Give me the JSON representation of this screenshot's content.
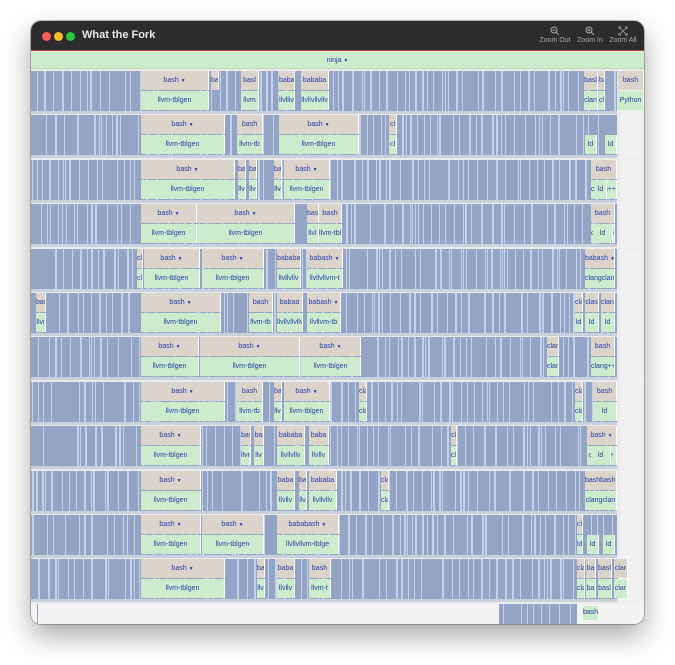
{
  "window": {
    "title": "What the Fork",
    "toolbar": [
      {
        "label": "Zoom Out",
        "icon": "zoom-out-icon"
      },
      {
        "label": "Zoom In",
        "icon": "zoom-in-icon"
      },
      {
        "label": "Zoom All",
        "icon": "zoom-all-icon"
      }
    ]
  },
  "root": {
    "label": "ninja"
  },
  "colors": {
    "fork": "#dcd3cb",
    "exec": "#cdeccd",
    "process": "#93a4c4",
    "stroke": "#c2d2ea",
    "text": "#2440a8"
  },
  "rows": [
    {
      "left": [
        [
          "bash",
          "llvm-tblgen"
        ],
        [
          "ba",
          ""
        ],
        [
          "basl",
          "llvm"
        ],
        [
          "baba",
          "llvlliv"
        ],
        [
          "bababa",
          "llvllvllvllv"
        ]
      ],
      "right": [
        [
          "basl",
          "clan"
        ],
        [
          "ba",
          "cla"
        ],
        [
          "bash",
          "Python"
        ]
      ]
    },
    {
      "left": [
        [
          "bash",
          "llvm-tblgen"
        ],
        [
          "bash",
          "llvm-tb"
        ],
        [
          "bash",
          "llvm-tblgen"
        ],
        [
          "cl",
          "cl"
        ]
      ],
      "right": [
        [
          "",
          "ld"
        ],
        [
          "",
          "ld"
        ]
      ]
    },
    {
      "left": [
        [
          "bash",
          "llvm-tblgen"
        ],
        [
          "ba",
          "llv"
        ],
        [
          "ba",
          "llv"
        ],
        [
          "ba",
          "llv"
        ],
        [
          "bash",
          "llvm-tblgen"
        ]
      ],
      "right": [
        [
          "bash",
          "clang++"
        ],
        [
          "",
          "ld"
        ]
      ]
    },
    {
      "left": [
        [
          "bash",
          "llvm-tblgen"
        ],
        [
          "bash",
          "llvm-tblgen"
        ],
        [
          "bas",
          "llvl"
        ],
        [
          "bash",
          "llvm-tblg"
        ]
      ],
      "right": [
        [
          "bash",
          "clang++"
        ],
        [
          "",
          "ld"
        ]
      ]
    },
    {
      "left": [
        [
          "cl",
          "cl"
        ],
        [
          "bash",
          "llvm-tblgen"
        ],
        [
          "bash",
          "llvm-tblgen"
        ],
        [
          "bababa",
          "llvllvllv"
        ],
        [
          "babash",
          "llvllvllvm-t"
        ]
      ],
      "right": [
        [
          "babash",
          "clangclang"
        ]
      ]
    },
    {
      "left": [
        [
          "bas",
          "llvi"
        ],
        [
          "bash",
          "llvm-tblgen"
        ],
        [
          "bash",
          "llvm-tb"
        ],
        [
          "babaa",
          "llvllvllvllv"
        ],
        [
          "babash",
          "llvllvm-tb"
        ]
      ],
      "right": [
        [
          "cla",
          "ld"
        ],
        [
          "clas",
          "ld"
        ],
        [
          "clang",
          "ld"
        ]
      ]
    },
    {
      "left": [
        [
          "bash",
          "llvm-tblgen"
        ],
        [
          "bash",
          "llvm-tblgen"
        ],
        [
          "bash",
          "llvm-tblgen"
        ]
      ],
      "right": [
        [
          "clan",
          "clan"
        ],
        [
          "bash",
          "clang++"
        ]
      ]
    },
    {
      "left": [
        [
          "bash",
          "llvm-tblgen"
        ],
        [
          "bash",
          "llvm-tb"
        ],
        [
          "ba",
          "llv"
        ],
        [
          "bash",
          "llvm-tblgen"
        ],
        [
          "cla",
          "cla"
        ]
      ],
      "right": [
        [
          "cla",
          "cla"
        ],
        [
          "bash",
          "ld"
        ]
      ]
    },
    {
      "left": [
        [
          "bash",
          "llvm-tblgen"
        ],
        [
          "bas",
          "llvn"
        ],
        [
          "ba",
          "llv"
        ],
        [
          "bababa",
          "llvllvllv"
        ],
        [
          "baba",
          "llvllv"
        ],
        [
          "cl",
          "cl"
        ]
      ],
      "right": [
        [
          "bash",
          "clang++"
        ],
        [
          "",
          "ld"
        ]
      ]
    },
    {
      "left": [
        [
          "bash",
          "llvm-tblgen"
        ],
        [
          "baba",
          "llvllv"
        ],
        [
          "ba",
          "llv"
        ],
        [
          "bababa",
          "llvllvllv"
        ],
        [
          "cla",
          "cla"
        ]
      ],
      "right": [
        [
          "bashbash",
          "clangclan"
        ]
      ]
    },
    {
      "left": [
        [
          "bash",
          "llvm-tblgen"
        ],
        [
          "bash",
          "llvm-tblgen"
        ],
        [
          "bababash",
          "llvllvllvm-tblge"
        ]
      ],
      "right": [
        [
          "cla",
          "ld"
        ],
        [
          "",
          "ld"
        ],
        [
          "",
          "ld"
        ]
      ]
    },
    {
      "left": [
        [
          "bash",
          "llvm-tblgen"
        ],
        [
          "ba",
          "llv"
        ],
        [
          "baba",
          "llvllv"
        ],
        [
          "bash",
          "llvm-t"
        ]
      ],
      "right": [
        [
          "clai",
          "clai"
        ],
        [
          "ba",
          "ba"
        ],
        [
          "basl",
          "basl"
        ],
        [
          "clar",
          "clar"
        ]
      ]
    }
  ],
  "bottom": {
    "right": [
      [
        "bash",
        "ba"
      ]
    ]
  }
}
